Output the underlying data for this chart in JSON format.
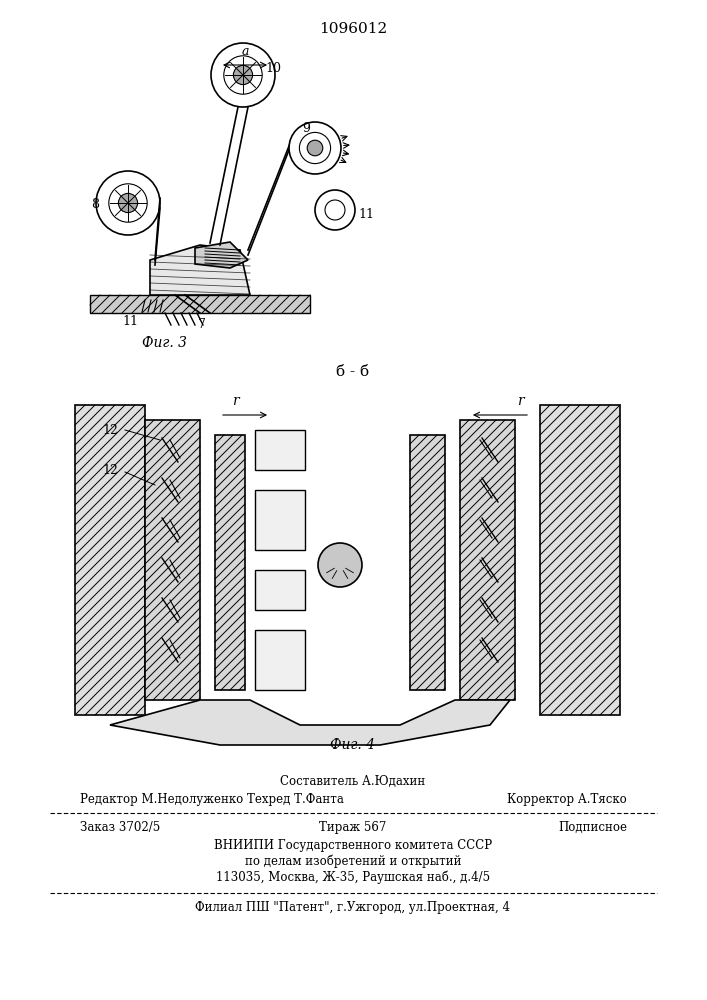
{
  "patent_number": "1096012",
  "bg_color": "#ffffff",
  "fig3_caption": "Фиг. 3",
  "fig4_caption": "Фиг. 4",
  "section_label": "б - б",
  "footer_line1_center": "Составитель А.Юдахин",
  "footer_line2_left": "Редактор М.Недолуженко Техред Т.Фанта",
  "footer_line2_right": "Корректор А.Тяско",
  "footer_line3_left": "Заказ 3702/5",
  "footer_line3_center": "Тираж 567",
  "footer_line3_right": "Подписное",
  "footer_line4": "ВНИИПИ Государственного комитета СССР",
  "footer_line5": "по делам изобретений и открытий",
  "footer_line6": "113035, Москва, Ж-35, Раушская наб., д.4/5",
  "footer_line7": "Филиал ПШ \"Патент\", г.Ужгород, ул.Проектная, 4",
  "figsize": [
    7.07,
    10.0
  ],
  "dpi": 100
}
